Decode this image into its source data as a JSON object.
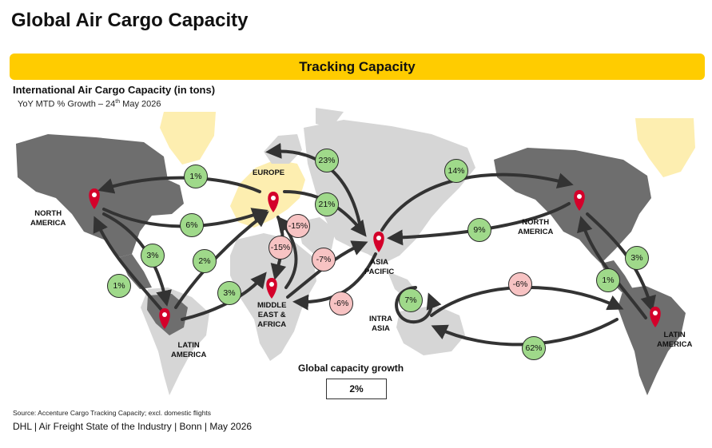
{
  "title": "Global Air Cargo Capacity",
  "banner": "Tracking Capacity",
  "subtitle": "International Air Cargo Capacity (in tons)",
  "subsub_main": "YoY MTD % Growth – 24",
  "subsub_sup": "th",
  "subsub_end": " May 2026",
  "regions": {
    "north_america_left": [
      "NORTH",
      "AMERICA"
    ],
    "europe": [
      "EUROPE"
    ],
    "latin_america_left": [
      "LATIN",
      "AMERICA"
    ],
    "middle_east_africa": [
      "MIDDLE",
      "EAST &",
      "AFRICA"
    ],
    "asia_pacific": [
      "ASIA",
      "PACIFIC"
    ],
    "intra_asia": [
      "INTRA",
      "ASIA"
    ],
    "north_america_right": [
      "NORTH",
      "AMERICA"
    ],
    "latin_america_right": [
      "LATIN",
      "AMERICA"
    ]
  },
  "bubbles": [
    {
      "id": "eu-na",
      "value": "1%",
      "sign": "pos"
    },
    {
      "id": "eu-na-back",
      "value": "6%",
      "sign": "pos"
    },
    {
      "id": "na-la",
      "value": "3%",
      "sign": "pos"
    },
    {
      "id": "la-na",
      "value": "1%",
      "sign": "pos"
    },
    {
      "id": "la-eu",
      "value": "2%",
      "sign": "pos"
    },
    {
      "id": "la-mea",
      "value": "3%",
      "sign": "pos"
    },
    {
      "id": "ap-eu",
      "value": "23%",
      "sign": "pos"
    },
    {
      "id": "eu-ap",
      "value": "21%",
      "sign": "pos"
    },
    {
      "id": "eu-mea",
      "value": "-15%",
      "sign": "neg"
    },
    {
      "id": "mea-eu",
      "value": "-15%",
      "sign": "neg"
    },
    {
      "id": "mea-ap",
      "value": "-7%",
      "sign": "neg"
    },
    {
      "id": "ap-mea",
      "value": "-6%",
      "sign": "neg"
    },
    {
      "id": "ap-na",
      "value": "14%",
      "sign": "pos"
    },
    {
      "id": "na-ap",
      "value": "9%",
      "sign": "pos"
    },
    {
      "id": "intra-asia",
      "value": "7%",
      "sign": "pos"
    },
    {
      "id": "ap-la",
      "value": "-6%",
      "sign": "neg"
    },
    {
      "id": "la-ap",
      "value": "62%",
      "sign": "pos"
    },
    {
      "id": "na-la-right",
      "value": "3%",
      "sign": "pos"
    },
    {
      "id": "la-na-right",
      "value": "1%",
      "sign": "pos"
    }
  ],
  "global_label": "Global capacity growth",
  "global_value": "2%",
  "source": "Source: Accenture Cargo Tracking Capacity; excl. domestic flights",
  "footer": "DHL | Air Freight State of the Industry | Bonn | May 2026",
  "colors": {
    "accent": "#ffcc00",
    "positive": "#9fd98a",
    "negative": "#f7c3c3",
    "pin": "#d4002a",
    "land_dark": "#6e6e6e",
    "land_light": "#d6d6d6",
    "land_yellow": "#fdeeb0"
  }
}
